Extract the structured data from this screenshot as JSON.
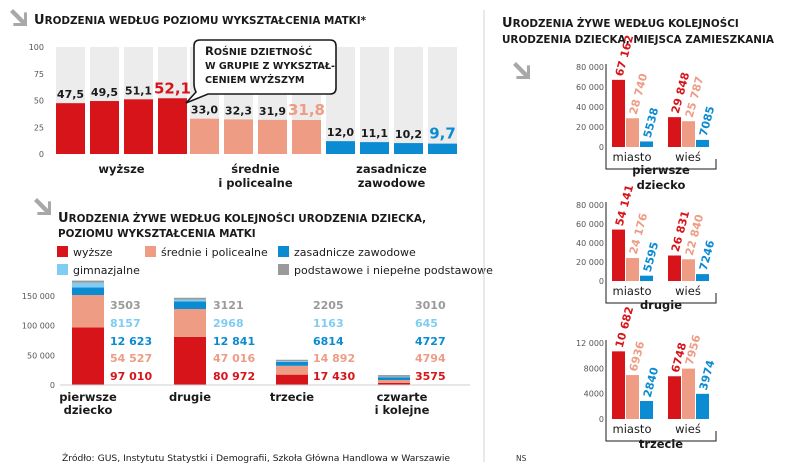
{
  "colors": {
    "red": "#d7141a",
    "salmon": "#ee9c84",
    "blue": "#0b8bd2",
    "lightblue": "#7fcdf2",
    "gray": "#9a9a9a",
    "bg_bar": "#ececec",
    "text": "#1a1a1a"
  },
  "icons": [
    "arrow-down-right-icon"
  ],
  "source_text": "Źródło: GUS, Instytutu Statystki i Demografii, Szkoła Główna Handlowa w Warszawie",
  "author": "NS",
  "chart_data": [
    {
      "id": "chart1",
      "type": "bar",
      "title": "Urodzenia według poziomu wykształcenia matki*",
      "yticks": [
        0,
        25,
        50,
        75,
        100
      ],
      "ylim": [
        0,
        100
      ],
      "callout": [
        "Rośnie dzietność",
        "w grupie z wykształ-",
        "ceniem wyższym"
      ],
      "groups": [
        {
          "label": [
            "wyższe"
          ],
          "color": "red",
          "values": [
            47.5,
            49.5,
            51.1,
            52.1
          ],
          "labels": [
            "47,5",
            "49,5",
            "51,1",
            "52,1"
          ]
        },
        {
          "label": [
            "średnie",
            "i policealne"
          ],
          "color": "salmon",
          "values": [
            33.0,
            32.3,
            31.9,
            31.8
          ],
          "labels": [
            "33,0",
            "32,3",
            "31,9",
            "31,8"
          ]
        },
        {
          "label": [
            "zasadnicze",
            "zawodowe"
          ],
          "color": "blue",
          "values": [
            12.0,
            11.1,
            10.2,
            9.7
          ],
          "labels": [
            "12,0",
            "11,1",
            "10,2",
            "9,7"
          ]
        }
      ]
    },
    {
      "id": "chart2",
      "type": "bar",
      "stacked": true,
      "title": [
        "Urodzenia żywe według kolejności urodzenia dziecka,",
        "poziomu wykształcenia matki"
      ],
      "legend": [
        {
          "key": "red",
          "label": "wyższe"
        },
        {
          "key": "salmon",
          "label": "średnie i policealne"
        },
        {
          "key": "blue",
          "label": "zasadnicze zawodowe"
        },
        {
          "key": "lightblue",
          "label": "gimnazjalne"
        },
        {
          "key": "gray",
          "label": "podstawowe i niepełne podstawowe"
        }
      ],
      "yticks": [
        0,
        50000,
        100000,
        150000
      ],
      "ytick_labels": [
        "0",
        "50 000",
        "100 000",
        "150 000"
      ],
      "ylim": [
        0,
        160000
      ],
      "series_order": [
        "red",
        "salmon",
        "blue",
        "lightblue",
        "gray"
      ],
      "categories": [
        {
          "label": [
            "pierwsze",
            "dziecko"
          ],
          "values": [
            97010,
            54527,
            12623,
            8157,
            3503
          ],
          "labels": [
            "97 010",
            "54 527",
            "12 623",
            "8157",
            "3503"
          ]
        },
        {
          "label": [
            "drugie"
          ],
          "values": [
            80972,
            47016,
            12841,
            2968,
            3121
          ],
          "labels": [
            "80 972",
            "47 016",
            "12 841",
            "2968",
            "3121"
          ]
        },
        {
          "label": [
            "trzecie"
          ],
          "values": [
            17430,
            14892,
            6814,
            1163,
            2205
          ],
          "labels": [
            "17 430",
            "14 892",
            "6814",
            "1163",
            "2205"
          ]
        },
        {
          "label": [
            "czwarte",
            "i kolejne"
          ],
          "values": [
            3575,
            4794,
            4727,
            645,
            3010
          ],
          "labels": [
            "3575",
            "4794",
            "4727",
            "645",
            "3010"
          ]
        }
      ]
    },
    {
      "id": "chart3",
      "type": "bar",
      "title": [
        "Urodzenia żywe według kolejności",
        "urodzenia dziecka, miejsca zamieszkania"
      ],
      "series_colors": [
        "red",
        "salmon",
        "blue"
      ],
      "panels": [
        {
          "title": [
            "pierwsze",
            "dziecko"
          ],
          "yticks": [
            0,
            20000,
            40000,
            60000,
            80000
          ],
          "ytick_labels": [
            "0",
            "20 000",
            "40 000",
            "60 000",
            "80 000"
          ],
          "ylim": [
            0,
            80000
          ],
          "groups": [
            {
              "label": "miasto",
              "values": [
                67162,
                28740,
                5538
              ],
              "labels": [
                "67 162",
                "28 740",
                "5538"
              ]
            },
            {
              "label": "wieś",
              "values": [
                29848,
                25787,
                7085
              ],
              "labels": [
                "29 848",
                "25 787",
                "7085"
              ]
            }
          ]
        },
        {
          "title": [
            "drugie"
          ],
          "yticks": [
            0,
            20000,
            40000,
            60000,
            80000
          ],
          "ytick_labels": [
            "0",
            "20 000",
            "40 000",
            "60 000",
            "80 000"
          ],
          "ylim": [
            0,
            80000
          ],
          "groups": [
            {
              "label": "miasto",
              "values": [
                54141,
                24176,
                5595
              ],
              "labels": [
                "54 141",
                "24 176",
                "5595"
              ]
            },
            {
              "label": "wieś",
              "values": [
                26831,
                22840,
                7246
              ],
              "labels": [
                "26 831",
                "22 840",
                "7246"
              ]
            }
          ]
        },
        {
          "title": [
            "trzecie"
          ],
          "yticks": [
            0,
            4000,
            8000,
            12000
          ],
          "ytick_labels": [
            "0",
            "4000",
            "8000",
            "12 000"
          ],
          "ylim": [
            0,
            12000
          ],
          "groups": [
            {
              "label": "miasto",
              "values": [
                10682,
                6936,
                2840
              ],
              "labels": [
                "10 682",
                "6936",
                "2840"
              ]
            },
            {
              "label": "wieś",
              "values": [
                6748,
                7956,
                3974
              ],
              "labels": [
                "6748",
                "7956",
                "3974"
              ]
            }
          ]
        }
      ]
    }
  ]
}
